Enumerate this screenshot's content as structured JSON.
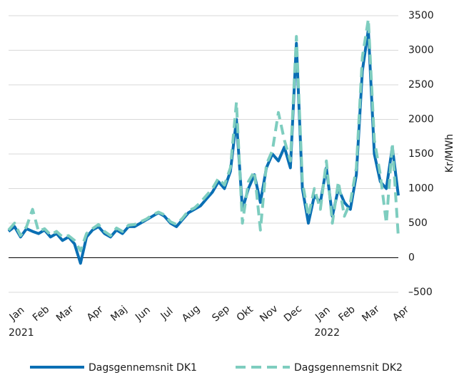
{
  "chart_data": {
    "type": "line",
    "y_label": "Kr/MWh",
    "categories": [
      "Jan",
      null,
      null,
      null,
      "Feb",
      null,
      null,
      null,
      "Mar",
      null,
      null,
      null,
      null,
      "Apr",
      null,
      null,
      null,
      "Maj",
      null,
      null,
      null,
      "Jun",
      null,
      null,
      null,
      "Jul",
      null,
      null,
      null,
      "Aug",
      null,
      null,
      null,
      null,
      "Sep",
      null,
      null,
      null,
      "Okt",
      null,
      null,
      null,
      "Nov",
      null,
      null,
      null,
      "Dec",
      null,
      null,
      null,
      null,
      "Jan",
      null,
      null,
      null,
      "Feb",
      null,
      null,
      null,
      "Mar",
      null,
      null,
      null,
      null,
      "Apr",
      null
    ],
    "year_labels": [
      "2021",
      "2022"
    ],
    "series": [
      {
        "name": "Dagsgennemsnit DK1",
        "color": "#0a6fb4",
        "line_style": "solid",
        "values": [
          380,
          450,
          300,
          420,
          380,
          350,
          400,
          300,
          350,
          250,
          300,
          200,
          -80,
          300,
          400,
          450,
          350,
          300,
          400,
          350,
          450,
          450,
          500,
          550,
          600,
          650,
          600,
          500,
          450,
          550,
          650,
          700,
          750,
          850,
          950,
          1100,
          1000,
          1250,
          2000,
          700,
          1000,
          1200,
          800,
          1300,
          1500,
          1400,
          1600,
          1300,
          3100,
          1000,
          500,
          900,
          800,
          1300,
          600,
          1000,
          800,
          700,
          1200,
          2700,
          3300,
          1500,
          1100,
          1000,
          1600,
          900
        ]
      },
      {
        "name": "Dagsgennemsnit DK2",
        "color": "#7ecdbf",
        "line_style": "dashed",
        "values": [
          400,
          500,
          320,
          450,
          700,
          380,
          420,
          330,
          380,
          300,
          320,
          250,
          100,
          350,
          420,
          480,
          380,
          320,
          430,
          380,
          470,
          480,
          520,
          560,
          620,
          660,
          620,
          520,
          480,
          570,
          680,
          720,
          800,
          900,
          1000,
          1150,
          1050,
          1300,
          2250,
          500,
          1100,
          1250,
          400,
          1350,
          1550,
          2100,
          1700,
          1400,
          3200,
          1100,
          600,
          1000,
          700,
          1400,
          500,
          1100,
          600,
          800,
          1300,
          2900,
          3450,
          1700,
          1200,
          500,
          1650,
          300
        ]
      }
    ],
    "ylim": [
      -500,
      3500
    ],
    "yticks": [
      {
        "value": -500,
        "label": "–500"
      },
      0,
      500,
      1000,
      1500,
      2000,
      2500,
      3000,
      3500
    ],
    "grid": true
  }
}
